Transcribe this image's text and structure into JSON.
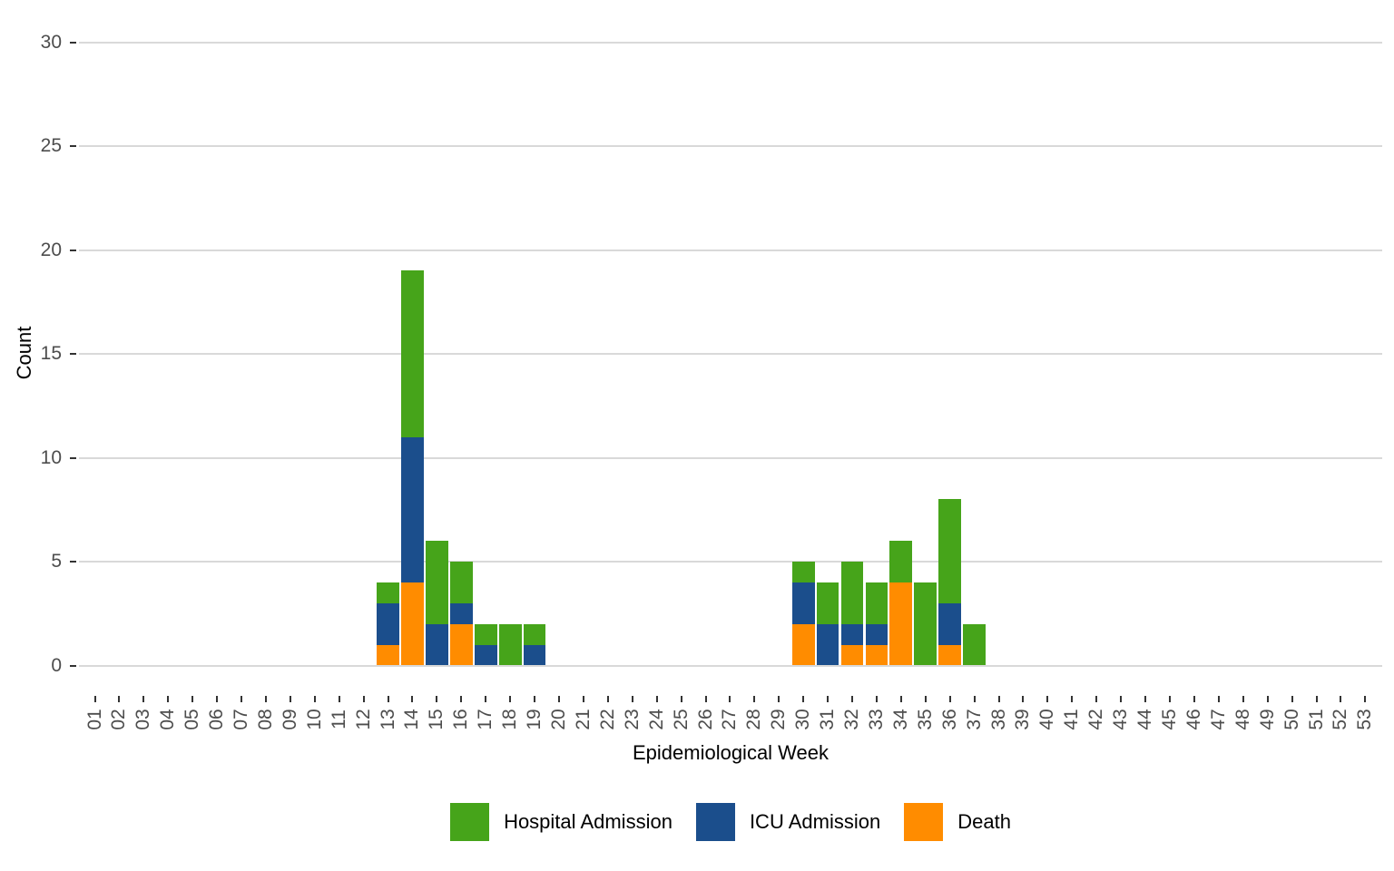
{
  "chart_data": {
    "type": "bar",
    "stacked": true,
    "title": "",
    "xlabel": "Epidemiological Week",
    "ylabel": "Count",
    "ylim": [
      0,
      30
    ],
    "yticks": [
      0,
      5,
      10,
      15,
      20,
      25,
      30
    ],
    "grid": "horizontal-major-only",
    "legend_position": "bottom",
    "categories": [
      "01",
      "02",
      "03",
      "04",
      "05",
      "06",
      "07",
      "08",
      "09",
      "10",
      "11",
      "12",
      "13",
      "14",
      "15",
      "16",
      "17",
      "18",
      "19",
      "20",
      "21",
      "22",
      "23",
      "24",
      "25",
      "26",
      "27",
      "28",
      "29",
      "30",
      "31",
      "32",
      "33",
      "34",
      "35",
      "36",
      "37",
      "38",
      "39",
      "40",
      "41",
      "42",
      "43",
      "44",
      "45",
      "46",
      "47",
      "48",
      "49",
      "50",
      "51",
      "52",
      "53"
    ],
    "stack_order_bottom_to_top": [
      "Death",
      "ICU Admission",
      "Hospital Admission"
    ],
    "series": [
      {
        "name": "Hospital Admission",
        "color": "#46a41a",
        "values": [
          0,
          0,
          0,
          0,
          0,
          0,
          0,
          0,
          0,
          0,
          0,
          0,
          1,
          8,
          4,
          2,
          1,
          2,
          1,
          0,
          0,
          0,
          0,
          0,
          0,
          0,
          0,
          0,
          0,
          1,
          2,
          3,
          2,
          2,
          4,
          5,
          2,
          0,
          0,
          0,
          0,
          0,
          0,
          0,
          0,
          0,
          0,
          0,
          0,
          0,
          0,
          0,
          0
        ]
      },
      {
        "name": "ICU Admission",
        "color": "#1b4e8c",
        "values": [
          0,
          0,
          0,
          0,
          0,
          0,
          0,
          0,
          0,
          0,
          0,
          0,
          2,
          7,
          2,
          1,
          1,
          0,
          1,
          0,
          0,
          0,
          0,
          0,
          0,
          0,
          0,
          0,
          0,
          2,
          2,
          1,
          1,
          0,
          0,
          2,
          0,
          0,
          0,
          0,
          0,
          0,
          0,
          0,
          0,
          0,
          0,
          0,
          0,
          0,
          0,
          0,
          0
        ]
      },
      {
        "name": "Death",
        "color": "#ff8c00",
        "values": [
          0,
          0,
          0,
          0,
          0,
          0,
          0,
          0,
          0,
          0,
          0,
          0,
          1,
          4,
          0,
          2,
          0,
          0,
          0,
          0,
          0,
          0,
          0,
          0,
          0,
          0,
          0,
          0,
          0,
          2,
          0,
          1,
          1,
          4,
          0,
          1,
          0,
          0,
          0,
          0,
          0,
          0,
          0,
          0,
          0,
          0,
          0,
          0,
          0,
          0,
          0,
          0,
          0
        ]
      }
    ],
    "colors": {
      "gridline": "#d9d9d9",
      "tick_mark": "#333333",
      "tick_label": "#4d4d4d",
      "axis_title": "#000000",
      "background": "#ffffff"
    }
  }
}
